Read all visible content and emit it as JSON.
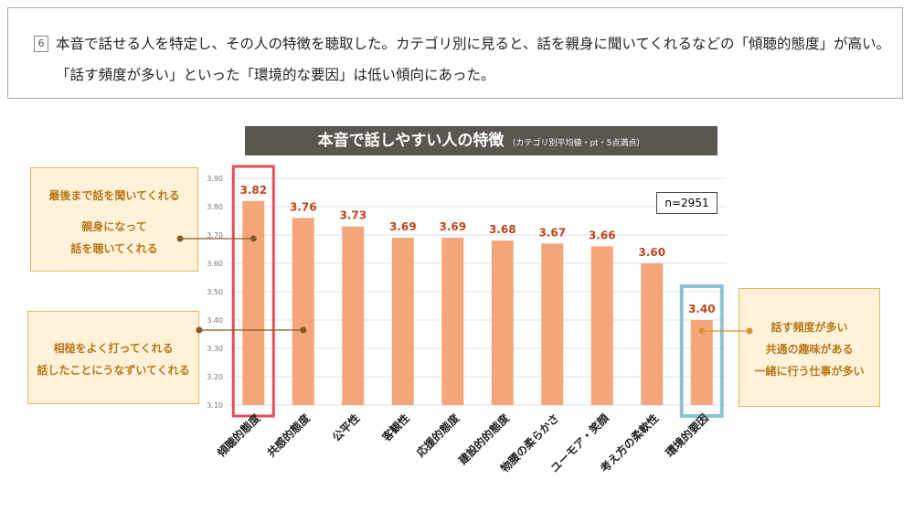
{
  "note": {
    "number": "6",
    "text": "本音で話せる人を特定し、その人の特徴を聴取した。カテゴリ別に見ると、話を親身に聞いてくれるなどの「傾聴的態度」が高い。「話す頻度が多い」といった「環境的な要因」は低い傾向にあった。"
  },
  "sample": "n=2951",
  "callouts": {
    "top_left": [
      "最後まで話を聞いてくれる",
      "親身になって",
      "話を聴いてくれる"
    ],
    "bottom_left": [
      "相槌をよく打ってくれる",
      "話したことにうなずいてくれる"
    ],
    "right": [
      "話す頻度が多い",
      "共通の趣味がある",
      "一緒に行う仕事が多い"
    ]
  },
  "chart_data": {
    "type": "bar",
    "title": "本音で話しやすい人の特徴",
    "subtitle": "（カテゴリ別平均値・pt・5点満点）",
    "categories": [
      "傾聴的態度",
      "共感的態度",
      "公平性",
      "客観性",
      "応援的態度",
      "建設的的態度",
      "物腰の柔らかさ",
      "ユーモア・笑顔",
      "考え方の柔軟性",
      "環境的要因"
    ],
    "values": [
      3.82,
      3.76,
      3.73,
      3.69,
      3.69,
      3.68,
      3.67,
      3.66,
      3.6,
      3.4
    ],
    "value_labels": [
      "3.82",
      "3.76",
      "3.73",
      "3.69",
      "3.69",
      "3.68",
      "3.67",
      "3.66",
      "3.60",
      "3.40"
    ],
    "ylim": [
      3.1,
      3.9
    ],
    "yticks": [
      "3.10",
      "3.20",
      "3.30",
      "3.40",
      "3.50",
      "3.60",
      "3.70",
      "3.80",
      "3.90"
    ],
    "grid": true,
    "highlights": {
      "max": "傾聴的態度",
      "min": "環境的要因"
    },
    "colors": {
      "bar": "#f4a57a",
      "value_label": "#c0441a",
      "highlight_high": "#e0505a",
      "highlight_low": "#8fc0d8",
      "callout_line": "#8a5a20"
    }
  }
}
